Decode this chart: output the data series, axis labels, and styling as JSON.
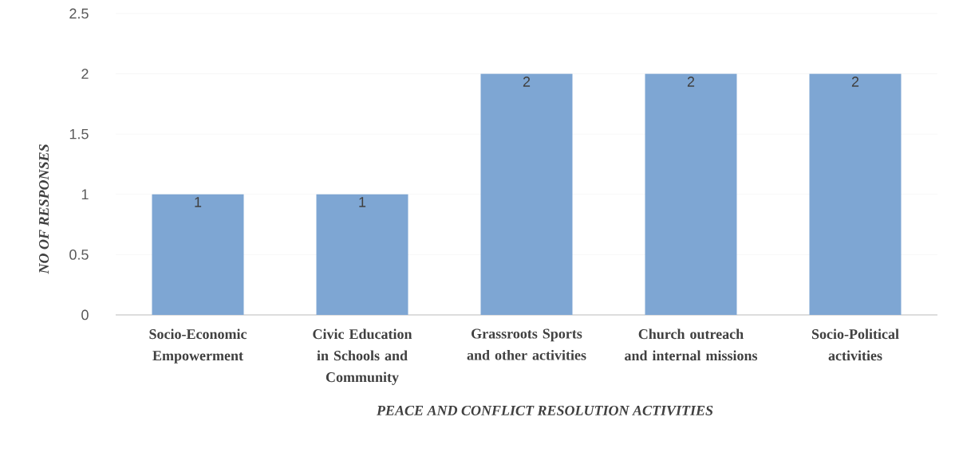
{
  "chart_data": {
    "type": "bar",
    "xlabel": "PEACE AND CONFLICT RESOLUTION  ACTIVITIES",
    "ylabel": "NO OF RESPONSES",
    "categories": [
      "Socio-Economic Empowerment",
      "Civic Education in Schools and Community",
      "Grassroots Sports and other activities",
      "Church outreach and internal missions",
      "Socio-Political activities"
    ],
    "values": [
      1,
      1,
      2,
      2,
      2
    ],
    "color": "#7ea6d3",
    "ylim": [
      0,
      2.5
    ],
    "yticks": [
      0,
      0.5,
      1,
      1.5,
      2,
      2.5
    ],
    "grid": "y",
    "data_labels": true
  }
}
